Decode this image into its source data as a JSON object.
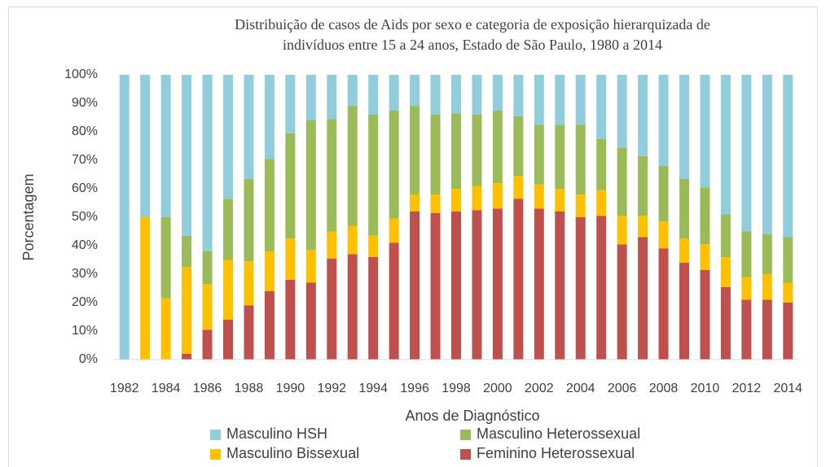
{
  "chart_data": {
    "type": "stacked_bar",
    "title": [
      "Distribuição de casos de Aids por sexo e categoria de exposição hierarquizada de",
      "indivíduos entre 15 a 24 anos, Estado de São Paulo, 1980 a 2014"
    ],
    "xlabel": "Anos de Diagnóstico",
    "ylabel": "Porcentagem",
    "categories": [
      "1982",
      null,
      "1984",
      null,
      "1986",
      null,
      "1988",
      null,
      "1990",
      null,
      "1992",
      null,
      "1994",
      null,
      "1996",
      null,
      "1998",
      null,
      "2000",
      null,
      "2002",
      null,
      "2004",
      null,
      "2006",
      null,
      "2008",
      null,
      "2010",
      null,
      "2012",
      null,
      "2014"
    ],
    "series": [
      {
        "name": "Feminino Heterossexual",
        "color": "#c0504d",
        "values": [
          0,
          0,
          0,
          2,
          10.5,
          14,
          19,
          24,
          28,
          27,
          35.5,
          37,
          36,
          41,
          52,
          51.5,
          52,
          52.5,
          53,
          56.5,
          53,
          52,
          50,
          50.5,
          40.5,
          43,
          39,
          34,
          31.5,
          25.5,
          21,
          21,
          20
        ]
      },
      {
        "name": "Masculino Bissexual",
        "color": "#ffc000",
        "values": [
          0,
          50,
          21.5,
          30.5,
          16,
          21,
          15.5,
          14,
          14.5,
          11.5,
          9.5,
          10,
          7.5,
          8.5,
          6,
          6.5,
          8,
          8.5,
          9,
          8,
          8.5,
          8,
          8,
          9,
          10,
          7.5,
          9.5,
          8.5,
          9,
          10.5,
          8,
          9,
          7
        ]
      },
      {
        "name": "Masculino Heterossexual",
        "color": "#9bbb59",
        "values": [
          0,
          0,
          28.5,
          11,
          11.5,
          21.5,
          29,
          32.5,
          37,
          45.5,
          39.5,
          42,
          42.5,
          38,
          31,
          28,
          26.5,
          25,
          25.5,
          21,
          21,
          22.5,
          24.5,
          18,
          24,
          21,
          19.5,
          21,
          20,
          15,
          16,
          14,
          16
        ]
      },
      {
        "name": "Masculino HSH",
        "color": "#92cddc",
        "values": [
          100,
          50,
          50,
          56.5,
          62,
          43.5,
          36.5,
          29.5,
          20.5,
          16,
          15.5,
          11,
          14,
          12.5,
          11,
          14,
          13.5,
          14,
          12.5,
          14.5,
          17.5,
          17.5,
          17.5,
          22.5,
          25.5,
          28.5,
          32,
          36.5,
          39.5,
          49,
          55,
          56,
          57
        ]
      }
    ],
    "legend_order": [
      3,
      2,
      1,
      0
    ],
    "ylim": [
      0,
      100
    ],
    "yticks": [
      {
        "value": 0,
        "label": "0%"
      },
      {
        "value": 10,
        "label": "10%"
      },
      {
        "value": 20,
        "label": "20%"
      },
      {
        "value": 30,
        "label": "30%"
      },
      {
        "value": 40,
        "label": "40%"
      },
      {
        "value": 50,
        "label": "50%"
      },
      {
        "value": 60,
        "label": "60%"
      },
      {
        "value": 70,
        "label": "70%"
      },
      {
        "value": 80,
        "label": "80%"
      },
      {
        "value": 90,
        "label": "90%"
      },
      {
        "value": 100,
        "label": "100%"
      }
    ],
    "grid": false
  }
}
